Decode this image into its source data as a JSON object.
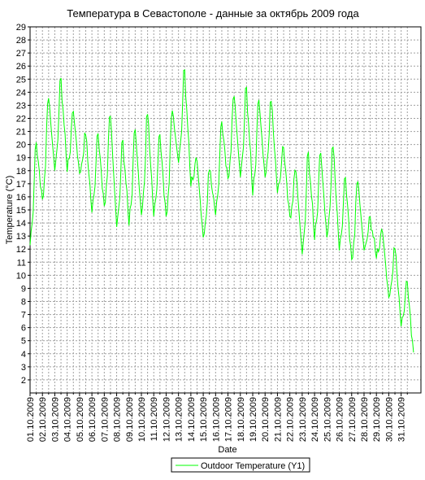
{
  "chart_data": {
    "type": "line",
    "title": "Температура в Севастополе - данные за октябрь 2009 года",
    "xlabel": "Date",
    "ylabel": "Temperature (°C)",
    "ylim": [
      1,
      29
    ],
    "yticks": [
      2,
      3,
      4,
      5,
      6,
      7,
      8,
      9,
      10,
      11,
      12,
      13,
      14,
      15,
      16,
      17,
      18,
      19,
      20,
      21,
      22,
      23,
      24,
      25,
      26,
      27,
      28,
      29
    ],
    "x_tick_labels": [
      "01.10.2009",
      "02.10.2009",
      "03.10.2009",
      "04.10.2009",
      "05.10.2009",
      "06.10.2009",
      "07.10.2009",
      "08.10.2009",
      "09.10.2009",
      "10.10.2009",
      "11.10.2009",
      "12.10.2009",
      "13.10.2009",
      "14.10.2009",
      "15.10.2009",
      "16.10.2009",
      "17.10.2009",
      "18.10.2009",
      "19.10.2009",
      "20.10.2009",
      "21.10.2009",
      "22.10.2009",
      "23.10.2009",
      "24.10.2009",
      "25.10.2009",
      "26.10.2009",
      "27.10.2009",
      "28.10.2009",
      "29.10.2009",
      "30.10.2009",
      "31.10.2009"
    ],
    "grid": true,
    "legend_position": "bottom-center",
    "series": [
      {
        "name": "Outdoor Temperature (Y1)",
        "color": "#00ff00",
        "daily_min_max": [
          [
            12.3,
            20.6
          ],
          [
            15.8,
            24.1
          ],
          [
            18.0,
            25.8
          ],
          [
            17.9,
            23.0
          ],
          [
            17.8,
            21.3
          ],
          [
            14.8,
            21.4
          ],
          [
            15.3,
            23.0
          ],
          [
            13.7,
            21.0
          ],
          [
            13.8,
            21.8
          ],
          [
            14.6,
            23.1
          ],
          [
            14.5,
            21.4
          ],
          [
            14.5,
            23.0
          ],
          [
            18.6,
            26.6
          ],
          [
            16.8,
            19.3
          ],
          [
            12.9,
            18.4
          ],
          [
            14.6,
            22.2
          ],
          [
            17.4,
            24.3
          ],
          [
            17.5,
            25.2
          ],
          [
            16.1,
            24.0
          ],
          [
            17.5,
            24.0
          ],
          [
            16.3,
            20.3
          ],
          [
            14.5,
            18.5
          ],
          [
            11.6,
            20.1
          ],
          [
            12.7,
            20.0
          ],
          [
            12.9,
            20.6
          ],
          [
            11.9,
            18.1
          ],
          [
            11.2,
            17.7
          ],
          [
            11.9,
            14.8
          ],
          [
            11.3,
            13.8
          ],
          [
            8.3,
            12.6
          ],
          [
            6.1,
            10.0
          ]
        ],
        "end_value": 4.1
      }
    ]
  }
}
